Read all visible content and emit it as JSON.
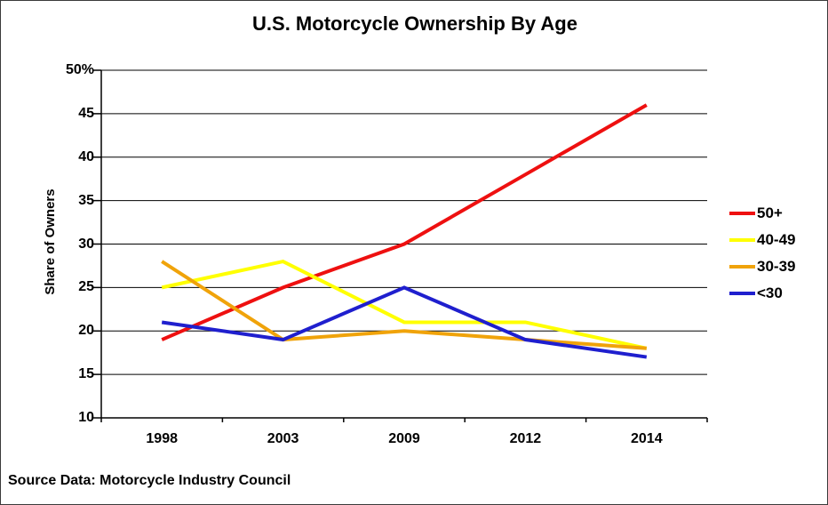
{
  "window": {
    "background": "#ffffff",
    "border_color": "#3a3a3a"
  },
  "chart_data": {
    "type": "line",
    "title": "U.S. Motorcycle Ownership By Age",
    "xlabel": "",
    "ylabel": "Share of Owners",
    "categories": [
      "1998",
      "2003",
      "2009",
      "2012",
      "2014"
    ],
    "series": [
      {
        "name": "50+",
        "color": "#ee1010",
        "values": [
          19,
          25,
          30,
          38,
          46
        ]
      },
      {
        "name": "40-49",
        "color": "#ffff00",
        "values": [
          25,
          28,
          21,
          21,
          18
        ]
      },
      {
        "name": "30-39",
        "color": "#f0a30a",
        "values": [
          28,
          19,
          20,
          19,
          18
        ]
      },
      {
        "name": "<30",
        "color": "#1f1fce",
        "values": [
          21,
          19,
          25,
          19,
          17
        ]
      }
    ],
    "ylim": [
      10,
      50
    ],
    "y_ticks": [
      50,
      45,
      40,
      35,
      30,
      25,
      20,
      15,
      10
    ],
    "y_tick_labels": [
      "50%",
      "45",
      "40",
      "35",
      "30",
      "25",
      "20",
      "15",
      "10"
    ],
    "grid": true,
    "gridline_color": "#000000",
    "axis_color": "#000000",
    "legend_position": "right"
  },
  "source_note": "Source Data: Motorcycle Industry Council"
}
